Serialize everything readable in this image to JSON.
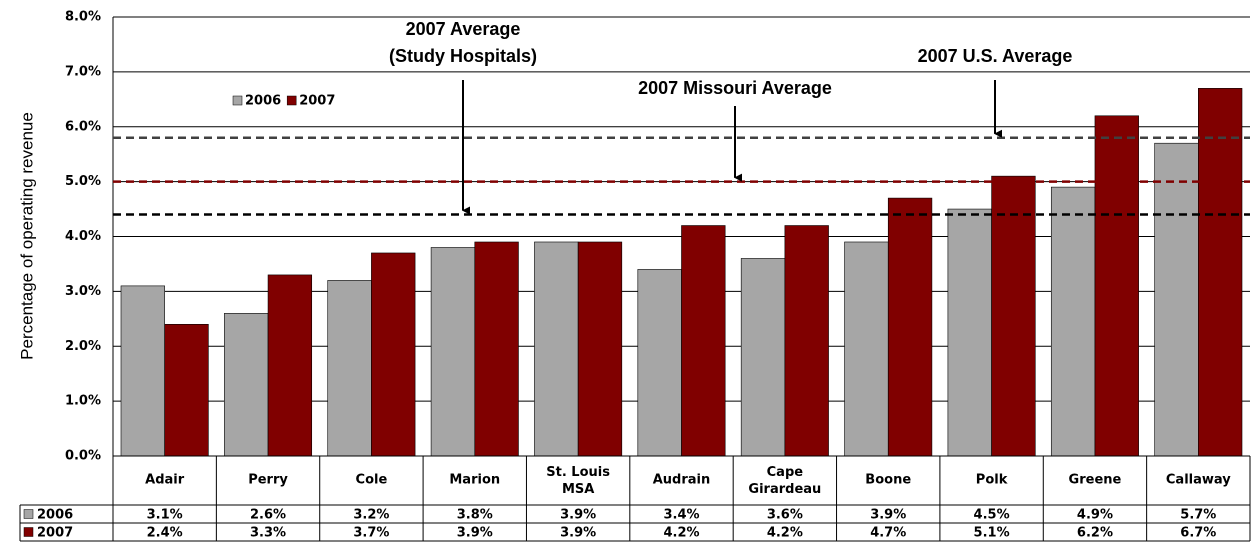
{
  "chart_data": {
    "type": "bar",
    "y_label": "Percentage of operating revenue",
    "categories": [
      "Adair",
      "Perry",
      "Cole",
      "Marion",
      "St. Louis MSA",
      "Audrain",
      "Cape Girardeau",
      "Boone",
      "Polk",
      "Greene",
      "Callaway"
    ],
    "series": [
      {
        "name": "2006",
        "color": "#a6a6a6",
        "values": [
          3.1,
          2.6,
          3.2,
          3.8,
          3.9,
          3.4,
          3.6,
          3.9,
          4.5,
          4.9,
          5.7
        ],
        "value_labels": [
          "3.1%",
          "2.6%",
          "3.2%",
          "3.8%",
          "3.9%",
          "3.4%",
          "3.6%",
          "3.9%",
          "4.5%",
          "4.9%",
          "5.7%"
        ]
      },
      {
        "name": "2007",
        "color": "#800000",
        "values": [
          2.4,
          3.3,
          3.7,
          3.9,
          3.9,
          4.2,
          4.2,
          4.7,
          5.1,
          6.2,
          6.7
        ],
        "value_labels": [
          "2.4%",
          "3.3%",
          "3.7%",
          "3.9%",
          "3.9%",
          "4.2%",
          "4.2%",
          "4.7%",
          "5.1%",
          "6.2%",
          "6.7%"
        ]
      }
    ],
    "ylim": [
      0,
      8
    ],
    "yticks": [
      {
        "value": 0,
        "label": "0.0%"
      },
      {
        "value": 1,
        "label": "1.0%"
      },
      {
        "value": 2,
        "label": "2.0%"
      },
      {
        "value": 3,
        "label": "3.0%"
      },
      {
        "value": 4,
        "label": "4.0%"
      },
      {
        "value": 5,
        "label": "5.0%"
      },
      {
        "value": 6,
        "label": "6.0%"
      },
      {
        "value": 7,
        "label": "7.0%"
      },
      {
        "value": 8,
        "label": "8.0%"
      }
    ],
    "grid": true,
    "legend": "upper left",
    "reference_lines": [
      {
        "label_lines": [
          "2007 Average",
          "(Study Hospitals)"
        ],
        "value": 4.4,
        "color": "#000000"
      },
      {
        "label_lines": [
          "2007 Missouri Average"
        ],
        "value": 5.0,
        "color": "#800000"
      },
      {
        "label_lines": [
          "2007 U.S. Average"
        ],
        "value": 5.8,
        "color": "#404040"
      }
    ]
  }
}
